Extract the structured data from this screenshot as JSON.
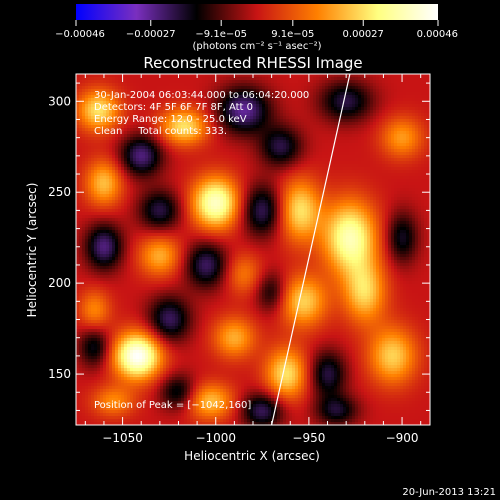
{
  "chart_data": {
    "type": "heatmap",
    "title": "Reconstructed RHESSI Image",
    "xlabel": "Heliocentric X (arcsec)",
    "ylabel": "Heliocentric Y (arcsec)",
    "xlim": [
      -1075,
      -885
    ],
    "ylim": [
      122,
      315
    ],
    "x_ticks": [
      -1050,
      -1000,
      -950,
      -900
    ],
    "x_tick_labels": [
      "−1050",
      "−1000",
      "−950",
      "−900"
    ],
    "y_ticks": [
      150,
      200,
      250,
      300
    ],
    "y_tick_labels": [
      "150",
      "200",
      "250",
      "300"
    ],
    "colorbar": {
      "range": [
        -0.00046,
        0.00046
      ],
      "ticks": [
        -0.00046,
        -0.00027,
        -9.1e-05,
        9.1e-05,
        0.00027,
        0.00046
      ],
      "tick_labels": [
        "−0.00046",
        "−0.00027",
        "−9.1e−05",
        "9.1e−05",
        "0.00027",
        "0.00046"
      ],
      "unit_label": "(photons cm⁻² s⁻¹ asec⁻²)",
      "colormap": [
        "#0000ff",
        "#7a2fbf",
        "#000000",
        "#c81414",
        "#ff8000",
        "#ffff80",
        "#ffffff"
      ]
    },
    "annotations": [
      "30-Jan-2004 06:03:44.000 to 06:04:20.000",
      "Detectors: 4F 5F 6F 7F 8F, Att 0",
      "Energy Range: 12.0 - 25.0 keV",
      "Clean     Total counts: 333."
    ],
    "peak_label": "Position of Peak = [−1042,160]",
    "peak": [
      -1042,
      160
    ],
    "limb_line": [
      [
        -970,
        122
      ],
      [
        -928,
        315
      ]
    ],
    "sources": [
      {
        "x": -1042,
        "y": 160,
        "amp": 1.0,
        "sx": 9,
        "sy": 9
      },
      {
        "x": -1000,
        "y": 244,
        "amp": 0.85,
        "sx": 9,
        "sy": 10
      },
      {
        "x": -1017,
        "y": 286,
        "amp": 0.6,
        "sx": 9,
        "sy": 7
      },
      {
        "x": -928,
        "y": 225,
        "amp": 0.8,
        "sx": 10,
        "sy": 14
      },
      {
        "x": -920,
        "y": 195,
        "amp": 0.55,
        "sx": 8,
        "sy": 12
      },
      {
        "x": -955,
        "y": 240,
        "amp": 0.6,
        "sx": 8,
        "sy": 12
      },
      {
        "x": -953,
        "y": 190,
        "amp": 0.55,
        "sx": 9,
        "sy": 10
      },
      {
        "x": -962,
        "y": 150,
        "amp": 0.6,
        "sx": 8,
        "sy": 10
      },
      {
        "x": -905,
        "y": 160,
        "amp": 0.55,
        "sx": 9,
        "sy": 11
      },
      {
        "x": -1063,
        "y": 295,
        "amp": 0.6,
        "sx": 8,
        "sy": 8
      },
      {
        "x": -1060,
        "y": 255,
        "amp": 0.5,
        "sx": 7,
        "sy": 9
      },
      {
        "x": -1030,
        "y": 215,
        "amp": 0.45,
        "sx": 8,
        "sy": 8
      },
      {
        "x": -1065,
        "y": 185,
        "amp": 0.35,
        "sx": 6,
        "sy": 8
      },
      {
        "x": -990,
        "y": 170,
        "amp": 0.45,
        "sx": 8,
        "sy": 8
      },
      {
        "x": -1003,
        "y": 135,
        "amp": 0.5,
        "sx": 9,
        "sy": 7
      },
      {
        "x": -1055,
        "y": 135,
        "amp": 0.35,
        "sx": 8,
        "sy": 6
      },
      {
        "x": -900,
        "y": 280,
        "amp": 0.4,
        "sx": 8,
        "sy": 8
      },
      {
        "x": -985,
        "y": 205,
        "amp": 0.3,
        "sx": 7,
        "sy": 8
      },
      {
        "x": -1040,
        "y": 270,
        "amp": -0.55,
        "sx": 8,
        "sy": 8
      },
      {
        "x": -985,
        "y": 295,
        "amp": -0.6,
        "sx": 10,
        "sy": 9
      },
      {
        "x": -1030,
        "y": 240,
        "amp": -0.45,
        "sx": 8,
        "sy": 8
      },
      {
        "x": -1060,
        "y": 220,
        "amp": -0.55,
        "sx": 7,
        "sy": 9
      },
      {
        "x": -1005,
        "y": 210,
        "amp": -0.5,
        "sx": 8,
        "sy": 9
      },
      {
        "x": -1025,
        "y": 180,
        "amp": -0.5,
        "sx": 8,
        "sy": 9
      },
      {
        "x": -975,
        "y": 240,
        "amp": -0.5,
        "sx": 8,
        "sy": 10
      },
      {
        "x": -965,
        "y": 275,
        "amp": -0.45,
        "sx": 8,
        "sy": 8
      },
      {
        "x": -930,
        "y": 300,
        "amp": -0.45,
        "sx": 10,
        "sy": 8
      },
      {
        "x": -1065,
        "y": 165,
        "amp": -0.4,
        "sx": 6,
        "sy": 8
      },
      {
        "x": -975,
        "y": 130,
        "amp": -0.5,
        "sx": 8,
        "sy": 7
      },
      {
        "x": -940,
        "y": 150,
        "amp": -0.45,
        "sx": 7,
        "sy": 9
      },
      {
        "x": -900,
        "y": 225,
        "amp": -0.4,
        "sx": 6,
        "sy": 10
      },
      {
        "x": -1020,
        "y": 140,
        "amp": -0.4,
        "sx": 7,
        "sy": 7
      },
      {
        "x": -935,
        "y": 130,
        "amp": -0.4,
        "sx": 8,
        "sy": 6
      },
      {
        "x": -970,
        "y": 195,
        "amp": -0.35,
        "sx": 6,
        "sy": 8
      }
    ]
  },
  "footer": {
    "timestamp": "20-Jun-2013 13:21"
  }
}
